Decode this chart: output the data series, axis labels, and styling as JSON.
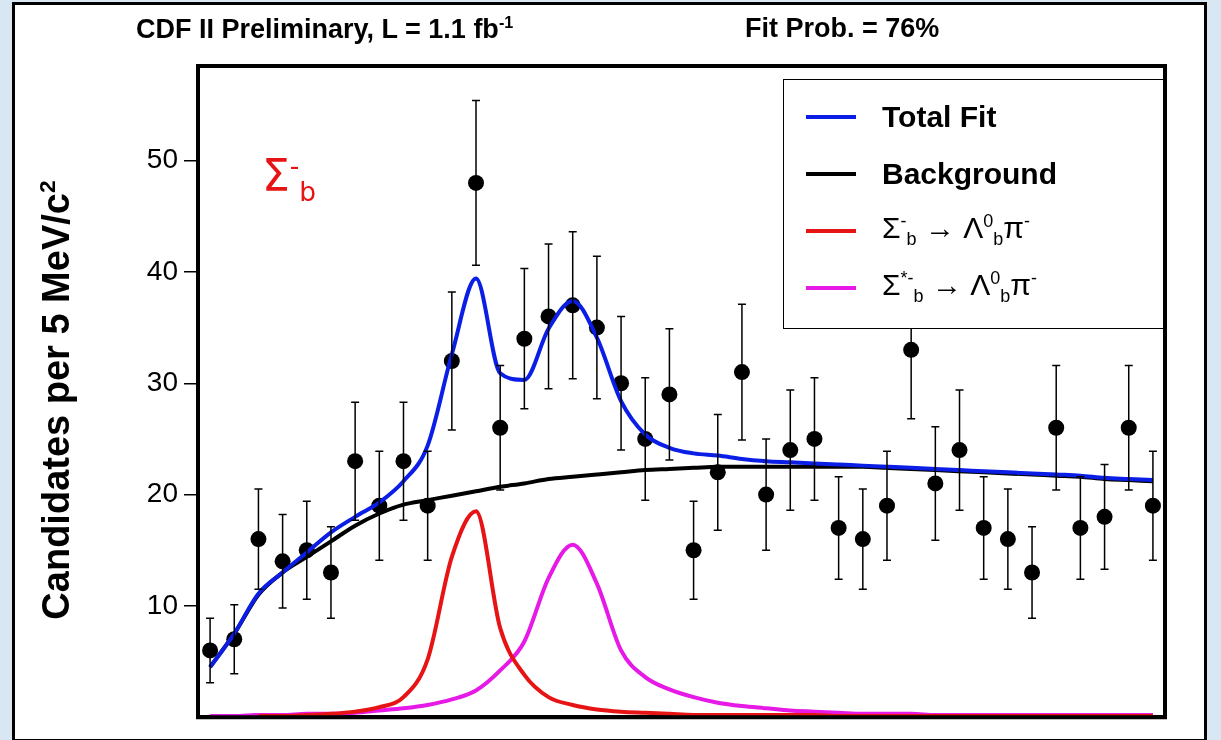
{
  "chart_data": {
    "type": "scatter",
    "title": "CDF II Preliminary, L = 1.1 fb$^{-1}$",
    "subtitle": "Fit Prob. = 76%",
    "ylabel": "Candidates per 5 MeV/c$^{2}$",
    "annotations": [
      "Σ$^{-}$$_{b}$"
    ],
    "categories": [
      null,
      null,
      null,
      null,
      null,
      null,
      null,
      null,
      null,
      null,
      null,
      null,
      null,
      null,
      null,
      null,
      null,
      null,
      null,
      null,
      null,
      null,
      null,
      null,
      null,
      null,
      null,
      null,
      null,
      null,
      null,
      null,
      null,
      null,
      null,
      null,
      null,
      null,
      null,
      null
    ],
    "ylim": [
      0,
      58.5
    ],
    "yticks": [
      10,
      20,
      30,
      40,
      50
    ],
    "grid": false,
    "legend": "top right",
    "tick_labels": "y",
    "series": [
      {
        "type": "line",
        "name": "Total Fit",
        "color": "#0a1ee6",
        "values": [
          4.5,
          7.5,
          11.1,
          13,
          14.8,
          16.6,
          18,
          19.3,
          21.2,
          24.4,
          32.6,
          39.4,
          30.9,
          30.3,
          34.9,
          37.4,
          34.1,
          28.4,
          25.4,
          24.2,
          23.7,
          23.5,
          23.2,
          23.0,
          22.9,
          22.8,
          22.7,
          22.6,
          22.5,
          22.4,
          22.3,
          22.2,
          22.1,
          22.0,
          21.9,
          21.8,
          21.7,
          21.5,
          21.4,
          21.3
        ]
      },
      {
        "type": "line",
        "name": "Background",
        "color": "#000000",
        "values": [
          4.5,
          7.5,
          11,
          13,
          14.4,
          15.8,
          17.2,
          18.3,
          19.1,
          19.5,
          19.9,
          20.3,
          20.7,
          21,
          21.4,
          21.6,
          21.8,
          22,
          22.2,
          22.3,
          22.4,
          22.5,
          22.5,
          22.5,
          22.5,
          22.5,
          22.5,
          22.5,
          22.4,
          22.3,
          22.2,
          22.1,
          22.0,
          21.9,
          21.8,
          21.7,
          21.6,
          21.4,
          21.3,
          21.2
        ]
      },
      {
        "type": "line",
        "name": "Σ$^{-}$$_{b}$ → Λ$^{0}$$_{b}$π$^{-}$",
        "color": "#e61414",
        "values": [
          null,
          null,
          0.1,
          0.1,
          0.2,
          0.3,
          0.5,
          0.9,
          1.8,
          5.2,
          14.4,
          18.5,
          8,
          3.8,
          1.8,
          1.1,
          0.7,
          0.5,
          0.4,
          0.3,
          0.2,
          0.2,
          0.2,
          0.2,
          0.2,
          0.2,
          0.1,
          0.1,
          0.1,
          0.1,
          0.1,
          0.1,
          0.1,
          0.1,
          0.1,
          0.1,
          0.1,
          0.1,
          0.1,
          0.1
        ]
      },
      {
        "type": "line",
        "name": "Σ$^{*-}$$_{b}$ → Λ$^{0}$$_{b}$π$^{-}$",
        "color": "#e619e6",
        "values": [
          0.1,
          0.1,
          0.2,
          0.2,
          0.3,
          0.3,
          0.4,
          0.6,
          0.8,
          1.1,
          1.6,
          2.4,
          4.2,
          6.8,
          12.5,
          15.5,
          12,
          6,
          3.6,
          2.5,
          1.8,
          1.3,
          1,
          0.8,
          0.6,
          0.5,
          0.4,
          0.3,
          0.3,
          0.3,
          0.2,
          0.2,
          0.2,
          0.2,
          0.2,
          0.2,
          0.2,
          0.2,
          0.2,
          0.2
        ]
      },
      {
        "color": "#000000",
        "marker": "circle",
        "values": [
          6,
          7,
          16,
          14,
          15,
          13,
          23,
          19,
          23,
          19,
          32,
          48,
          26,
          34,
          36,
          37,
          35,
          30,
          25,
          29,
          15,
          22,
          31,
          20,
          24,
          25,
          17,
          16,
          19,
          33,
          21,
          24,
          17,
          16,
          13,
          26,
          17,
          18,
          26,
          19
        ],
        "errors": [
          2.9,
          3.1,
          4.5,
          4.2,
          4.4,
          4.1,
          5.3,
          4.9,
          5.3,
          4.9,
          6.2,
          7.4,
          5.6,
          6.3,
          6.5,
          6.6,
          6.4,
          6.0,
          5.5,
          5.9,
          4.4,
          5.2,
          6.1,
          5.0,
          5.4,
          5.5,
          4.6,
          4.5,
          4.9,
          6.2,
          5.1,
          5.4,
          4.6,
          4.5,
          4.1,
          5.6,
          4.6,
          4.7,
          5.6,
          4.9
        ]
      }
    ]
  }
}
